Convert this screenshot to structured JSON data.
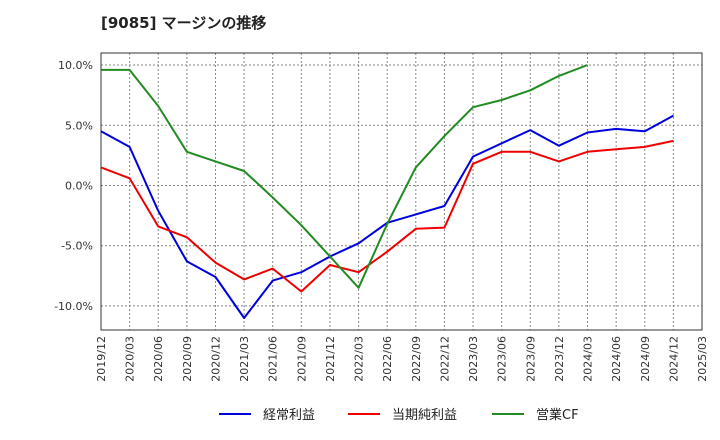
{
  "chart_data": {
    "type": "line",
    "title": "[9085]  マージンの推移",
    "x": [
      "2019/12",
      "2020/03",
      "2020/06",
      "2020/09",
      "2020/12",
      "2021/03",
      "2021/06",
      "2021/09",
      "2021/12",
      "2022/03",
      "2022/06",
      "2022/09",
      "2022/12",
      "2023/03",
      "2023/06",
      "2023/09",
      "2023/12",
      "2024/03",
      "2024/06",
      "2024/09",
      "2024/12",
      "2025/03"
    ],
    "y_ticks": [
      "10.0%",
      "5.0%",
      "0.0%",
      "-5.0%",
      "-10.0%"
    ],
    "y_tick_values": [
      10,
      5,
      0,
      -5,
      -10
    ],
    "ylim": [
      -12,
      11
    ],
    "grid": true,
    "legend_position": "bottom",
    "series": [
      {
        "name": "経常利益",
        "color": "#0000dd",
        "values": [
          4.5,
          3.2,
          -2.1,
          -6.3,
          -7.6,
          -11.0,
          -7.9,
          -7.2,
          -5.9,
          -4.8,
          -3.1,
          -2.4,
          -1.7,
          2.4,
          3.5,
          4.6,
          3.3,
          4.4,
          4.7,
          4.5,
          5.8,
          null
        ]
      },
      {
        "name": "当期純利益",
        "color": "#ee0000",
        "values": [
          1.5,
          0.6,
          -3.4,
          -4.3,
          -6.4,
          -7.8,
          -6.9,
          -8.8,
          -6.6,
          -7.2,
          -5.5,
          -3.6,
          -3.5,
          1.8,
          2.8,
          2.8,
          2.0,
          2.8,
          3.0,
          3.2,
          3.7,
          null
        ]
      },
      {
        "name": "営業CF",
        "color": "#228b22",
        "values": [
          9.6,
          9.6,
          6.6,
          2.8,
          2.0,
          1.2,
          -1.0,
          -3.3,
          -5.9,
          -8.5,
          -3.2,
          1.5,
          4.1,
          6.5,
          7.1,
          7.9,
          9.1,
          10.0,
          null,
          null,
          null,
          null
        ]
      }
    ]
  }
}
